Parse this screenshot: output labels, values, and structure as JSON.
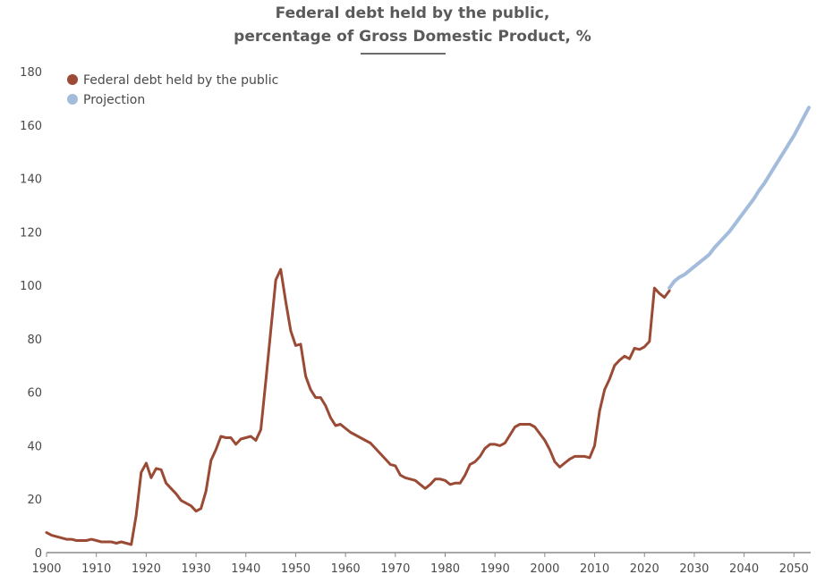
{
  "chart_data": {
    "type": "line",
    "title_line1": "Federal debt held by the public,",
    "title_line2": "percentage of Gross Domestic Product, %",
    "xlabel": "",
    "ylabel": "",
    "xlim": [
      1900,
      2053
    ],
    "ylim": [
      0,
      180
    ],
    "yticks": [
      "0",
      "20",
      "40",
      "60",
      "80",
      "100",
      "120",
      "140",
      "160",
      "180"
    ],
    "xticks": [
      "1900",
      "1910",
      "1920",
      "1930",
      "1940",
      "1950",
      "1960",
      "1970",
      "1980",
      "1990",
      "2000",
      "2010",
      "2020",
      "2030",
      "2040",
      "2050"
    ],
    "legend_position": "top-left",
    "series": [
      {
        "name": "Federal debt held by the public",
        "color": "#9b4a35",
        "points": [
          [
            1900,
            7.5
          ],
          [
            1901,
            6.5
          ],
          [
            1902,
            6
          ],
          [
            1903,
            5.5
          ],
          [
            1904,
            5
          ],
          [
            1905,
            5
          ],
          [
            1906,
            4.5
          ],
          [
            1907,
            4.5
          ],
          [
            1908,
            4.5
          ],
          [
            1909,
            5
          ],
          [
            1910,
            4.5
          ],
          [
            1911,
            4
          ],
          [
            1912,
            4
          ],
          [
            1913,
            4
          ],
          [
            1914,
            3.5
          ],
          [
            1915,
            4
          ],
          [
            1916,
            3.5
          ],
          [
            1917,
            3
          ],
          [
            1918,
            14
          ],
          [
            1919,
            30
          ],
          [
            1920,
            33.5
          ],
          [
            1921,
            28
          ],
          [
            1922,
            31.5
          ],
          [
            1923,
            31
          ],
          [
            1924,
            26
          ],
          [
            1925,
            24
          ],
          [
            1926,
            22
          ],
          [
            1927,
            19.5
          ],
          [
            1928,
            18.5
          ],
          [
            1929,
            17.5
          ],
          [
            1930,
            15.5
          ],
          [
            1931,
            16.5
          ],
          [
            1932,
            23
          ],
          [
            1933,
            34.5
          ],
          [
            1934,
            38.5
          ],
          [
            1935,
            43.5
          ],
          [
            1936,
            43
          ],
          [
            1937,
            43
          ],
          [
            1938,
            40.5
          ],
          [
            1939,
            42.5
          ],
          [
            1940,
            43
          ],
          [
            1941,
            43.5
          ],
          [
            1942,
            42
          ],
          [
            1943,
            46
          ],
          [
            1944,
            64
          ],
          [
            1945,
            83
          ],
          [
            1946,
            102
          ],
          [
            1947,
            106
          ],
          [
            1948,
            94
          ],
          [
            1949,
            83
          ],
          [
            1950,
            77.5
          ],
          [
            1951,
            78
          ],
          [
            1952,
            66
          ],
          [
            1953,
            61
          ],
          [
            1954,
            58
          ],
          [
            1955,
            58
          ],
          [
            1956,
            55
          ],
          [
            1957,
            50.5
          ],
          [
            1958,
            47.5
          ],
          [
            1959,
            48
          ],
          [
            1960,
            46.5
          ],
          [
            1961,
            45
          ],
          [
            1962,
            44
          ],
          [
            1963,
            43
          ],
          [
            1964,
            42
          ],
          [
            1965,
            41
          ],
          [
            1966,
            39
          ],
          [
            1967,
            37
          ],
          [
            1968,
            35
          ],
          [
            1969,
            33
          ],
          [
            1970,
            32.5
          ],
          [
            1971,
            29
          ],
          [
            1972,
            28
          ],
          [
            1973,
            27.5
          ],
          [
            1974,
            27
          ],
          [
            1975,
            25.5
          ],
          [
            1976,
            24
          ],
          [
            1977,
            25.5
          ],
          [
            1978,
            27.5
          ],
          [
            1979,
            27.5
          ],
          [
            1980,
            27
          ],
          [
            1981,
            25.5
          ],
          [
            1982,
            26
          ],
          [
            1983,
            26
          ],
          [
            1984,
            29
          ],
          [
            1985,
            33
          ],
          [
            1986,
            34
          ],
          [
            1987,
            36
          ],
          [
            1988,
            39
          ],
          [
            1989,
            40.5
          ],
          [
            1990,
            40.5
          ],
          [
            1991,
            40
          ],
          [
            1992,
            41
          ],
          [
            1993,
            44
          ],
          [
            1994,
            47
          ],
          [
            1995,
            48
          ],
          [
            1996,
            48
          ],
          [
            1997,
            48
          ],
          [
            1998,
            47
          ],
          [
            1999,
            44.5
          ],
          [
            2000,
            42
          ],
          [
            2001,
            38.5
          ],
          [
            2002,
            34
          ],
          [
            2003,
            32
          ],
          [
            2004,
            33.5
          ],
          [
            2005,
            35
          ],
          [
            2006,
            36
          ],
          [
            2007,
            36
          ],
          [
            2008,
            36
          ],
          [
            2009,
            35.5
          ],
          [
            2010,
            40
          ],
          [
            2011,
            53
          ],
          [
            2012,
            61
          ],
          [
            2013,
            65
          ],
          [
            2014,
            70
          ],
          [
            2015,
            72
          ],
          [
            2016,
            73.5
          ],
          [
            2017,
            72.5
          ],
          [
            2018,
            76.5
          ],
          [
            2019,
            76
          ],
          [
            2020,
            77
          ],
          [
            2021,
            79
          ],
          [
            2022,
            99
          ],
          [
            2023,
            97
          ],
          [
            2024,
            95.5
          ],
          [
            2025,
            98
          ]
        ]
      },
      {
        "name": "Projection",
        "color": "#a4bcdc",
        "points": [
          [
            2025,
            99
          ],
          [
            2026,
            101.5
          ],
          [
            2027,
            103
          ],
          [
            2028,
            104
          ],
          [
            2029,
            105.5
          ],
          [
            2030,
            107
          ],
          [
            2031,
            108.5
          ],
          [
            2032,
            110
          ],
          [
            2033,
            111.5
          ],
          [
            2034,
            114
          ],
          [
            2035,
            116
          ],
          [
            2036,
            118
          ],
          [
            2037,
            120
          ],
          [
            2038,
            122.5
          ],
          [
            2039,
            125
          ],
          [
            2040,
            127.5
          ],
          [
            2041,
            130
          ],
          [
            2042,
            132.5
          ],
          [
            2043,
            135.5
          ],
          [
            2044,
            138
          ],
          [
            2045,
            141
          ],
          [
            2046,
            144
          ],
          [
            2047,
            147
          ],
          [
            2048,
            150
          ],
          [
            2049,
            153
          ],
          [
            2050,
            156
          ],
          [
            2051,
            159.5
          ],
          [
            2052,
            163
          ],
          [
            2053,
            166.5
          ]
        ]
      }
    ]
  }
}
